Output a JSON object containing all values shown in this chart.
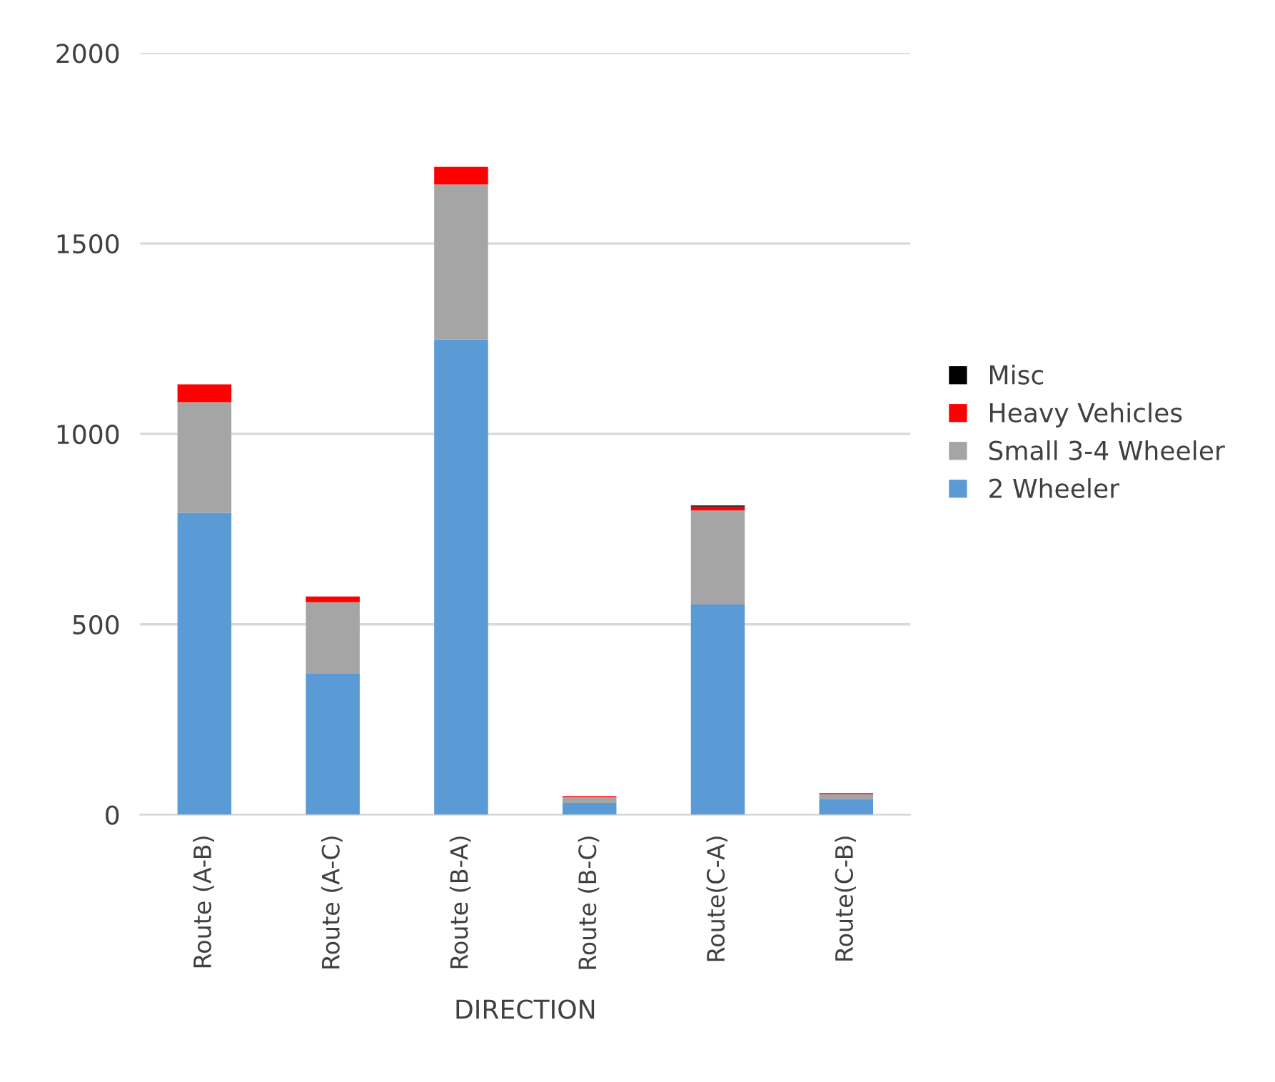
{
  "chart_data": {
    "type": "bar",
    "stacked": true,
    "xlabel": "DIRECTION",
    "categories": [
      "Route (A-B)",
      "Route (A-C)",
      "Route (B-A)",
      "Route (B-C)",
      "Route(C-A)",
      "Route(C-B)"
    ],
    "series": [
      {
        "name": "2 Wheeler",
        "color": "#5b9bd5",
        "values": [
          793,
          370,
          1248,
          31,
          552,
          42
        ]
      },
      {
        "name": "Small 3-4 Wheeler",
        "color": "#a5a5a5",
        "values": [
          290,
          188,
          407,
          15,
          247,
          12
        ]
      },
      {
        "name": "Heavy Vehicles",
        "color": "#ff0000",
        "values": [
          47,
          15,
          46,
          3,
          10,
          3
        ]
      },
      {
        "name": "Misc",
        "color": "#000000",
        "values": [
          0,
          0,
          0,
          0,
          3,
          0
        ]
      }
    ],
    "ylim": [
      0,
      2000
    ],
    "yticks": [
      0,
      500,
      1000,
      1500,
      2000
    ],
    "grid": "y",
    "legend": "right"
  }
}
